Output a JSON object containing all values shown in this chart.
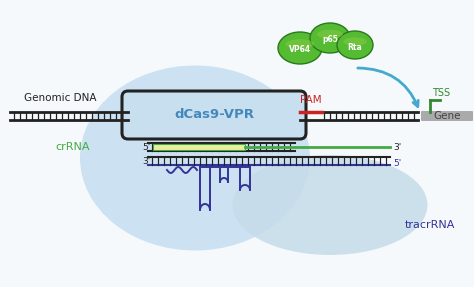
{
  "bg_color": "#f5f9fc",
  "light_blue_main": "#c8dff0",
  "light_blue_tracr": "#c5dcea",
  "dna_color": "#222222",
  "pam_color": "#cc2222",
  "tss_color": "#338833",
  "gene_box_color": "#aaaaaa",
  "gene_text_color": "#444444",
  "dcas9_text_color": "#4488bb",
  "dcas9_label": "dCas9-VPR",
  "genomic_dna_label": "Genomic DNA",
  "pam_label": "PAM",
  "tss_label": "TSS",
  "gene_label": "Gene",
  "crrna_label": "crRNA",
  "tracrrna_label": "tracrRNA",
  "vp64_label": "VP64",
  "p65_label": "p65",
  "rta_label": "Rta",
  "green_dark": "#3a9a2a",
  "green_med": "#55bb33",
  "green_light": "#88cc44",
  "green_border": "#2a7a1a",
  "arrow_color": "#44aacc",
  "crrna_yellow": "#e8f0a0",
  "crrna_green": "#44aa44",
  "tracr_color": "#333399",
  "five_prime": "5'",
  "three_prime": "3'"
}
